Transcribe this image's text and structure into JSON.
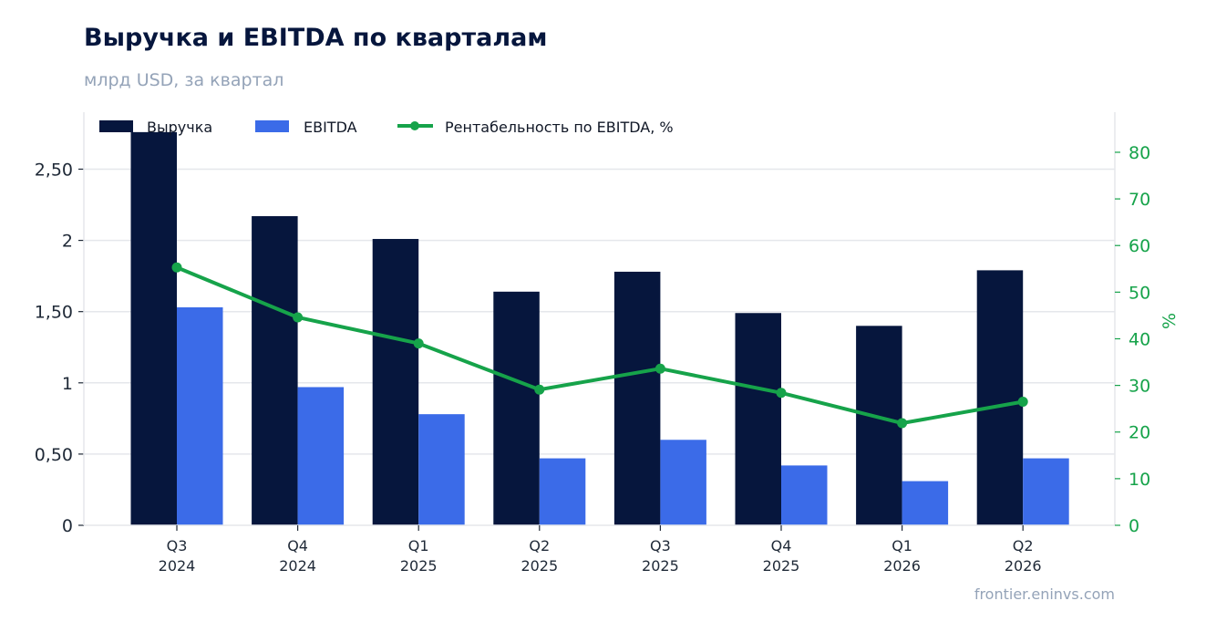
{
  "header": {
    "title": "Выручка и EBITDA по кварталам",
    "subtitle": "млрд USD, за квартал"
  },
  "footer": {
    "source": "frontier.eninvs.com"
  },
  "chart_data": {
    "type": "bar",
    "categories": [
      [
        "Q3",
        "2024"
      ],
      [
        "Q4",
        "2024"
      ],
      [
        "Q1",
        "2025"
      ],
      [
        "Q2",
        "2025"
      ],
      [
        "Q3",
        "2025"
      ],
      [
        "Q4",
        "2025"
      ],
      [
        "Q1",
        "2026"
      ],
      [
        "Q2",
        "2026"
      ]
    ],
    "series": [
      {
        "name": "Выручка",
        "type": "bar",
        "axis": "left",
        "color": "#06163d",
        "values": [
          2.76,
          2.17,
          2.01,
          1.64,
          1.78,
          1.49,
          1.4,
          1.79
        ]
      },
      {
        "name": "EBITDA",
        "type": "bar",
        "axis": "left",
        "color": "#3b6be8",
        "values": [
          1.53,
          0.97,
          0.78,
          0.47,
          0.6,
          0.42,
          0.31,
          0.47
        ]
      },
      {
        "name": "Рентабельность по EBITDA, %",
        "type": "line",
        "axis": "right",
        "color": "#16a34a",
        "values": [
          55.3,
          44.6,
          39.0,
          29.1,
          33.6,
          28.4,
          21.9,
          26.5
        ]
      }
    ],
    "y_left": {
      "ticks": [
        0,
        0.5,
        1,
        1.5,
        2,
        2.5
      ],
      "tick_labels": [
        "0",
        "0,50",
        "1",
        "1,50",
        "2",
        "2,50"
      ],
      "ylim": [
        0,
        2.9
      ]
    },
    "y_right": {
      "ticks": [
        0,
        10,
        20,
        30,
        40,
        50,
        60,
        70,
        80
      ],
      "tick_labels": [
        "0",
        "10",
        "20",
        "30",
        "40",
        "50",
        "60",
        "70",
        "80"
      ],
      "ylim": [
        0,
        88.6
      ],
      "label": "%"
    },
    "grid": true,
    "legend": "top-left"
  }
}
